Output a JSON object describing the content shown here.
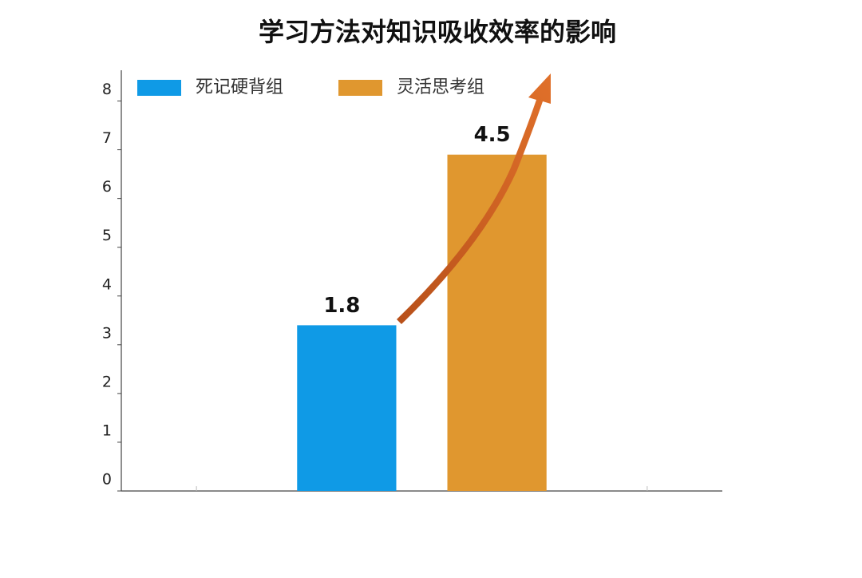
{
  "chart_data": {
    "type": "bar",
    "title": "学习方法对知识吸收效率的影响",
    "categories": [
      null,
      null,
      null,
      null
    ],
    "series": [
      {
        "name": "死记硬背组",
        "color": "#0f9ae6",
        "values": [
          null,
          3.4,
          null,
          null
        ]
      },
      {
        "name": "灵活思考组",
        "color": "#e0972f",
        "values": [
          null,
          null,
          6.9,
          null
        ]
      }
    ],
    "annotations": [
      "1.8",
      "4.5"
    ],
    "ylim": [
      0,
      8.5
    ],
    "yticks": [
      0,
      1,
      2,
      3,
      4,
      5,
      6,
      7,
      8
    ],
    "grid": false,
    "legend": "top-left"
  }
}
